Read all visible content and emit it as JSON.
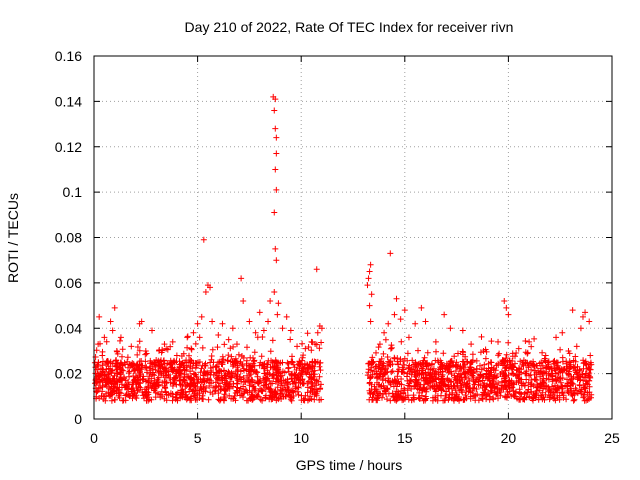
{
  "chart_data": {
    "type": "scatter",
    "title": "Day 210 of 2022, Rate Of TEC Index for receiver rivn",
    "xlabel": "GPS time / hours",
    "ylabel": "ROTI / TECUs",
    "xlim": [
      0,
      25
    ],
    "ylim": [
      0,
      0.16
    ],
    "xticks": [
      "0",
      "5",
      "10",
      "15",
      "20",
      "25"
    ],
    "yticks": [
      "0",
      "0.02",
      "0.04",
      "0.06",
      "0.08",
      "0.1",
      "0.12",
      "0.14",
      "0.16"
    ],
    "grid": true,
    "marker": "plus",
    "color": "#ff0000",
    "data_gap_hours": [
      11.0,
      13.2
    ],
    "series": [
      {
        "points": [
          [
            0.1,
            0.009
          ],
          [
            0.2,
            0.033
          ],
          [
            0.25,
            0.045
          ],
          [
            0.4,
            0.028
          ],
          [
            0.5,
            0.036
          ],
          [
            0.6,
            0.022
          ],
          [
            0.8,
            0.043
          ],
          [
            0.9,
            0.039
          ],
          [
            1.0,
            0.049
          ],
          [
            1.1,
            0.03
          ],
          [
            1.3,
            0.036
          ],
          [
            1.5,
            0.024
          ],
          [
            1.8,
            0.032
          ],
          [
            2.2,
            0.042
          ],
          [
            2.3,
            0.043
          ],
          [
            2.5,
            0.03
          ],
          [
            2.8,
            0.039
          ],
          [
            3.0,
            0.026
          ],
          [
            3.4,
            0.033
          ],
          [
            3.8,
            0.034
          ],
          [
            4.0,
            0.028
          ],
          [
            4.5,
            0.036
          ],
          [
            4.8,
            0.038
          ],
          [
            5.0,
            0.042
          ],
          [
            5.1,
            0.036
          ],
          [
            5.2,
            0.045
          ],
          [
            5.3,
            0.079
          ],
          [
            5.4,
            0.056
          ],
          [
            5.5,
            0.059
          ],
          [
            5.6,
            0.058
          ],
          [
            5.7,
            0.043
          ],
          [
            6.0,
            0.037
          ],
          [
            6.2,
            0.042
          ],
          [
            6.5,
            0.035
          ],
          [
            6.7,
            0.04
          ],
          [
            6.9,
            0.033
          ],
          [
            7.1,
            0.062
          ],
          [
            7.2,
            0.052
          ],
          [
            7.5,
            0.043
          ],
          [
            7.8,
            0.038
          ],
          [
            8.0,
            0.047
          ],
          [
            8.2,
            0.039
          ],
          [
            8.4,
            0.043
          ],
          [
            8.5,
            0.052
          ],
          [
            8.65,
            0.142
          ],
          [
            8.7,
            0.136
          ],
          [
            8.75,
            0.141
          ],
          [
            8.75,
            0.128
          ],
          [
            8.8,
            0.124
          ],
          [
            8.8,
            0.117
          ],
          [
            8.75,
            0.11
          ],
          [
            8.8,
            0.101
          ],
          [
            8.7,
            0.091
          ],
          [
            8.75,
            0.075
          ],
          [
            8.8,
            0.07
          ],
          [
            8.7,
            0.056
          ],
          [
            8.85,
            0.046
          ],
          [
            8.9,
            0.051
          ],
          [
            9.1,
            0.04
          ],
          [
            9.3,
            0.045
          ],
          [
            9.5,
            0.039
          ],
          [
            9.8,
            0.032
          ],
          [
            10.2,
            0.031
          ],
          [
            10.5,
            0.034
          ],
          [
            10.8,
            0.038
          ],
          [
            10.9,
            0.041
          ],
          [
            10.75,
            0.066
          ],
          [
            11.0,
            0.04
          ],
          [
            13.2,
            0.059
          ],
          [
            13.25,
            0.062
          ],
          [
            13.3,
            0.065
          ],
          [
            13.35,
            0.068
          ],
          [
            13.4,
            0.055
          ],
          [
            13.3,
            0.05
          ],
          [
            13.35,
            0.043
          ],
          [
            13.8,
            0.033
          ],
          [
            14.0,
            0.038
          ],
          [
            14.2,
            0.042
          ],
          [
            14.3,
            0.073
          ],
          [
            14.5,
            0.046
          ],
          [
            14.6,
            0.053
          ],
          [
            14.8,
            0.044
          ],
          [
            15.0,
            0.048
          ],
          [
            15.2,
            0.036
          ],
          [
            15.5,
            0.042
          ],
          [
            15.8,
            0.049
          ],
          [
            16.0,
            0.043
          ],
          [
            16.5,
            0.034
          ],
          [
            16.9,
            0.046
          ],
          [
            17.2,
            0.04
          ],
          [
            17.8,
            0.039
          ],
          [
            18.2,
            0.033
          ],
          [
            18.8,
            0.03
          ],
          [
            19.5,
            0.034
          ],
          [
            19.8,
            0.052
          ],
          [
            19.9,
            0.049
          ],
          [
            20.0,
            0.046
          ],
          [
            20.5,
            0.031
          ],
          [
            21.0,
            0.034
          ],
          [
            21.8,
            0.028
          ],
          [
            22.3,
            0.036
          ],
          [
            22.6,
            0.038
          ],
          [
            22.9,
            0.03
          ],
          [
            23.1,
            0.048
          ],
          [
            23.3,
            0.032
          ],
          [
            23.5,
            0.04
          ],
          [
            23.6,
            0.045
          ],
          [
            23.7,
            0.047
          ],
          [
            23.9,
            0.043
          ],
          [
            23.95,
            0.028
          ]
        ]
      }
    ]
  }
}
